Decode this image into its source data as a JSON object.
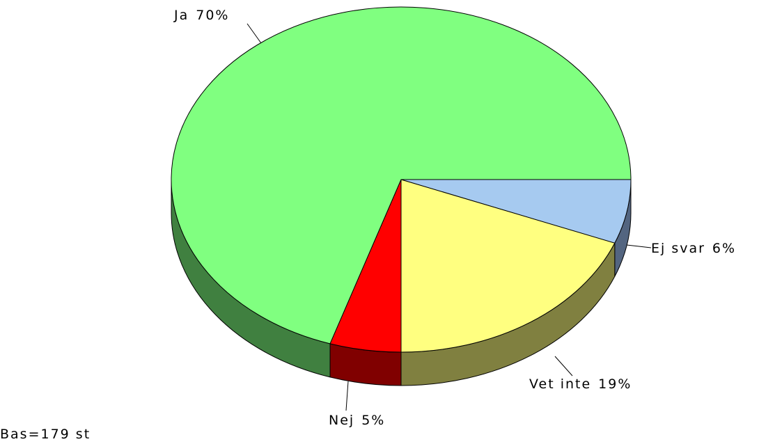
{
  "chart_data": {
    "type": "pie",
    "categories": [
      "Ja",
      "Nej",
      "Vet inte",
      "Ej svar"
    ],
    "values": [
      70,
      5,
      19,
      6
    ],
    "value_labels": [
      "70%",
      "5%",
      "19%",
      "6%"
    ],
    "colors": [
      "#80ff80",
      "#ff0000",
      "#ffff80",
      "#a6caf0"
    ],
    "side_colors": [
      "#408040",
      "#800000",
      "#808040",
      "#536580"
    ],
    "note": "Bas=179 st"
  }
}
